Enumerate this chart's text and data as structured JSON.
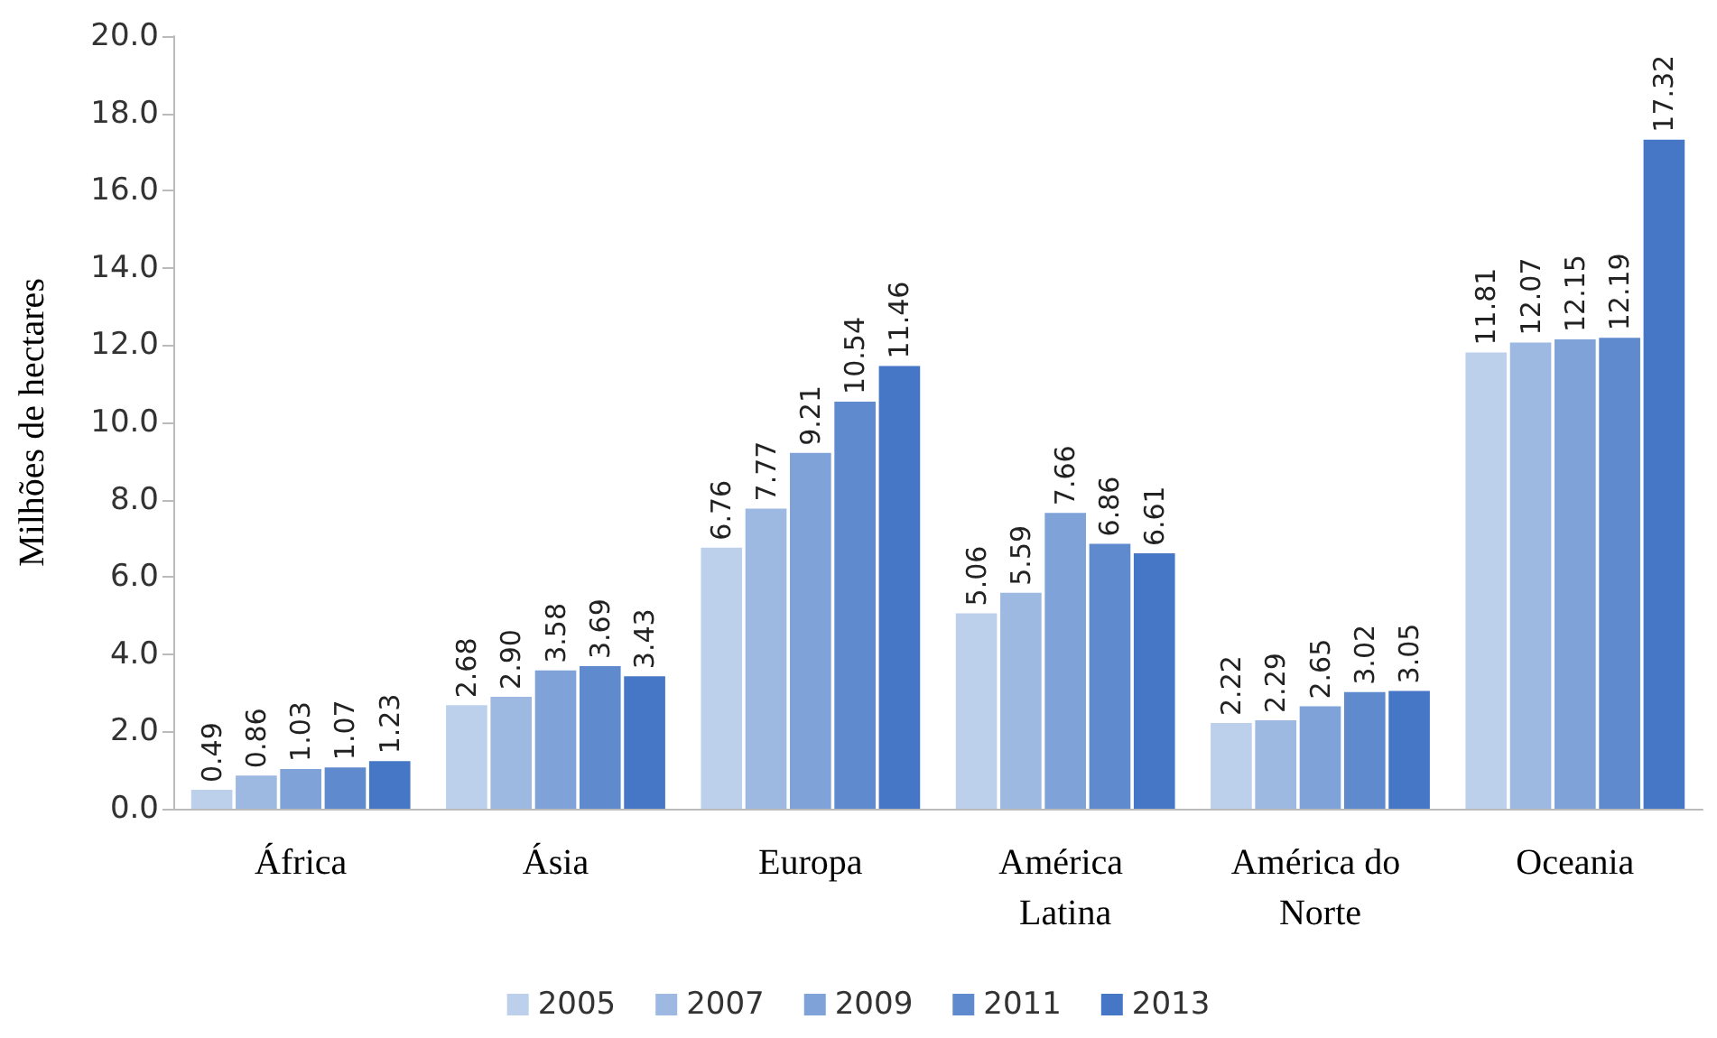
{
  "chart_data": {
    "type": "bar",
    "ylabel": "Milhões de hectares",
    "categories": [
      "África",
      "Ásia",
      "Europa",
      "América Latina",
      "América do Norte",
      "Oceania"
    ],
    "series": [
      {
        "name": "2005",
        "color": "#bcd0ec",
        "values": [
          0.49,
          2.68,
          6.76,
          5.06,
          2.22,
          11.81
        ],
        "value_labels": [
          "0.49",
          "2.68",
          "6.76",
          "5.06",
          "2.22",
          "11.81"
        ]
      },
      {
        "name": "2007",
        "color": "#9db9e2",
        "values": [
          0.86,
          2.9,
          7.77,
          5.59,
          2.29,
          12.07
        ],
        "value_labels": [
          "0.86",
          "2.90",
          "7.77",
          "5.59",
          "2.29",
          "12.07"
        ]
      },
      {
        "name": "2009",
        "color": "#7fa3d9",
        "values": [
          1.03,
          3.58,
          9.21,
          7.66,
          2.65,
          12.15
        ],
        "value_labels": [
          "1.03",
          "3.58",
          "9.21",
          "7.66",
          "2.65",
          "12.15"
        ]
      },
      {
        "name": "2011",
        "color": "#5f8ace",
        "values": [
          1.07,
          3.69,
          10.54,
          6.86,
          3.02,
          12.19
        ],
        "value_labels": [
          "1.07",
          "3.69",
          "10.54",
          "6.86",
          "3.02",
          "12.19"
        ]
      },
      {
        "name": "2013",
        "color": "#4677c6",
        "values": [
          1.23,
          3.43,
          11.46,
          6.61,
          3.05,
          17.32
        ],
        "value_labels": [
          "1.23",
          "3.43",
          "11.46",
          "6.61",
          "3.05",
          "17.32"
        ]
      }
    ],
    "ylim": [
      0,
      20
    ],
    "yticks": [
      {
        "value": 0,
        "label": "0.0"
      },
      {
        "value": 2,
        "label": "2.0"
      },
      {
        "value": 4,
        "label": "4.0"
      },
      {
        "value": 6,
        "label": "6.0"
      },
      {
        "value": 8,
        "label": "8.0"
      },
      {
        "value": 10,
        "label": "10.0"
      },
      {
        "value": 12,
        "label": "12.0"
      },
      {
        "value": 14,
        "label": "14.0"
      },
      {
        "value": 16,
        "label": "16.0"
      },
      {
        "value": 18,
        "label": "18.0"
      },
      {
        "value": 20,
        "label": "20.0"
      }
    ],
    "grid": false,
    "legend": "bottom"
  }
}
